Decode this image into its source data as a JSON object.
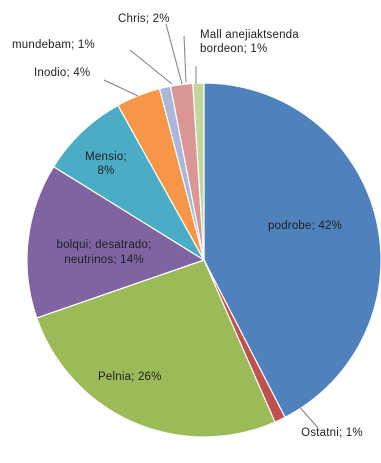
{
  "chart_data": {
    "type": "pie",
    "title": "",
    "slices": [
      {
        "label": "podrobe; 42%",
        "value": 42,
        "color": "#4f81bd"
      },
      {
        "label": "Ostatni; 1%",
        "value": 1,
        "color": "#c0504d"
      },
      {
        "label": "Pelnia; 26%",
        "value": 26,
        "color": "#9bbb59"
      },
      {
        "label": "bolqui; desatrado; neutrinos; 14%",
        "value": 14,
        "color": "#8064a2"
      },
      {
        "label": "Mensio; 8%",
        "value": 8,
        "color": "#4bacc6"
      },
      {
        "label": "Inodio; 4%",
        "value": 4,
        "color": "#f79646"
      },
      {
        "label": "mundebam; 1%",
        "value": 1,
        "color": "#a9b7d8"
      },
      {
        "label": "Chris; 2%",
        "value": 2,
        "color": "#d99694"
      },
      {
        "label": "Mall anejiaktsenda bordeon; 1%",
        "value": 1,
        "color": "#c3d69b"
      }
    ]
  }
}
